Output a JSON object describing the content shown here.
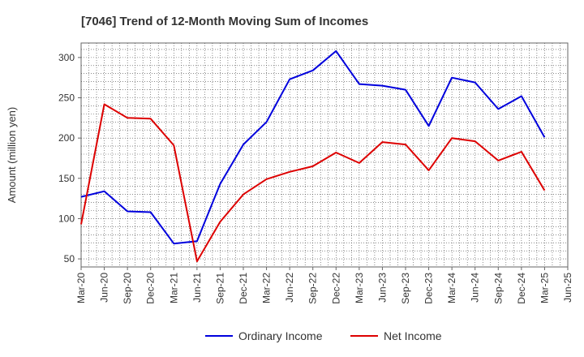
{
  "chart_data": {
    "type": "line",
    "title": "[7046]  Trend of 12-Month Moving Sum of Incomes",
    "xlabel": "",
    "ylabel": "Amount (million yen)",
    "ylim": [
      40,
      318
    ],
    "yticks": [
      50,
      100,
      150,
      200,
      250,
      300
    ],
    "categories": [
      "Mar-20",
      "Jun-20",
      "Sep-20",
      "Dec-20",
      "Mar-21",
      "Jun-21",
      "Sep-21",
      "Dec-21",
      "Mar-22",
      "Jun-22",
      "Sep-22",
      "Dec-22",
      "Mar-23",
      "Jun-23",
      "Sep-23",
      "Dec-23",
      "Mar-24",
      "Jun-24",
      "Sep-24",
      "Dec-24",
      "Mar-25",
      "Jun-25"
    ],
    "grid": true,
    "legend_position": "bottom",
    "series": [
      {
        "name": "Ordinary Income",
        "color": "#0000dd",
        "values": [
          127,
          134,
          109,
          108,
          69,
          72,
          143,
          192,
          220,
          273,
          284,
          308,
          267,
          265,
          260,
          215,
          275,
          269,
          236,
          252,
          201,
          null
        ]
      },
      {
        "name": "Net Income",
        "color": "#dd0000",
        "values": [
          93,
          242,
          225,
          224,
          191,
          47,
          96,
          130,
          149,
          158,
          165,
          182,
          169,
          195,
          192,
          160,
          200,
          196,
          172,
          183,
          135,
          null
        ]
      }
    ]
  }
}
